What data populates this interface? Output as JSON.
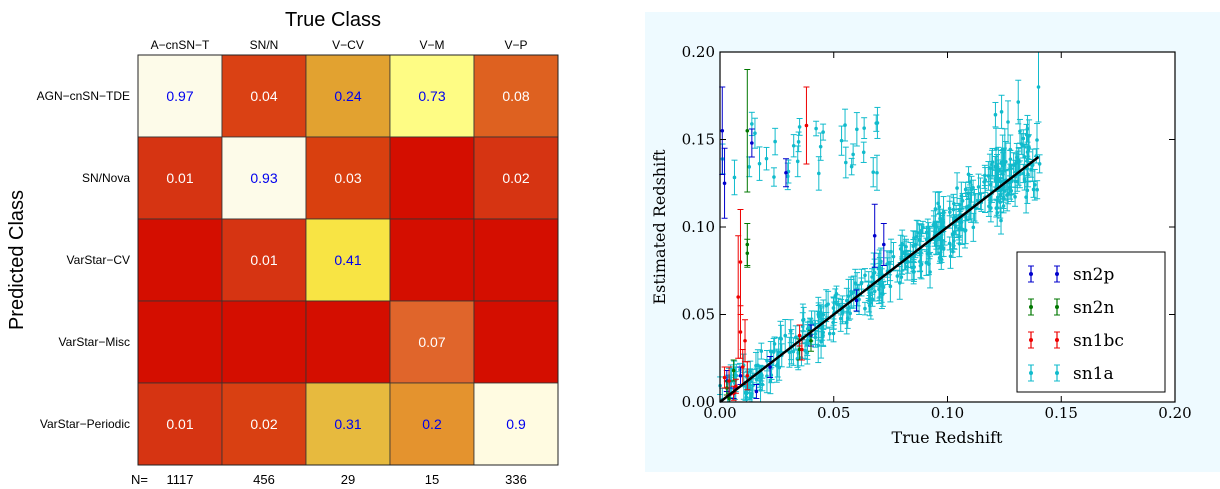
{
  "chart_data": [
    {
      "type": "heatmap",
      "title": "True Class",
      "xlabel": "True Class",
      "ylabel": "Predicted Class",
      "columns": [
        "A−cnSN−T",
        "SN/N",
        "V−CV",
        "V−M",
        "V−P"
      ],
      "rows": [
        "AGN−cnSN−TDE",
        "SN/Nova",
        "VarStar−CV",
        "VarStar−Misc",
        "VarStar−Periodic"
      ],
      "values": [
        [
          0.97,
          0.04,
          0.24,
          0.73,
          0.08
        ],
        [
          0.01,
          0.93,
          0.03,
          null,
          0.02
        ],
        [
          null,
          0.01,
          0.41,
          null,
          null
        ],
        [
          null,
          null,
          null,
          0.07,
          null
        ],
        [
          0.01,
          0.02,
          0.31,
          0.2,
          0.9
        ]
      ],
      "cell_colors": [
        [
          "#fdfbe9",
          "#da4114",
          "#e2a230",
          "#fefc84",
          "#de6120"
        ],
        [
          "#d63412",
          "#fdfbe9",
          "#d9400f",
          "#d40e00",
          "#d63412"
        ],
        [
          "#d40e00",
          "#d63412",
          "#f8e444",
          "#d40e00",
          "#d40e00"
        ],
        [
          "#d40e00",
          "#d40e00",
          "#d40e00",
          "#e0652b",
          "#d40e00"
        ],
        [
          "#d63412",
          "#d94012",
          "#e7ba3e",
          "#e4932e",
          "#fffbe1"
        ]
      ],
      "value_text_colors": {
        "high": "#0000ee",
        "low": "#ffffff"
      },
      "n_label": "N=",
      "n_values": [
        "1117",
        "456",
        "29",
        "15",
        "336"
      ]
    },
    {
      "type": "scatter",
      "xlabel": "True Redshift",
      "ylabel": "Estimated Redshift",
      "xlim": [
        0.0,
        0.2
      ],
      "ylim": [
        0.0,
        0.2
      ],
      "xticks": [
        "0.00",
        "0.05",
        "0.10",
        "0.15",
        "0.20"
      ],
      "yticks": [
        "0.00",
        "0.05",
        "0.10",
        "0.15",
        "0.20"
      ],
      "legend_position": "lower-right",
      "series": [
        {
          "name": "sn2p",
          "color": "#0000cc",
          "points": [
            [
              0.001,
              0.155,
              0.025
            ],
            [
              0.002,
              0.125,
              0.02
            ],
            [
              0.003,
              0.012,
              0.006
            ],
            [
              0.004,
              0.004,
              0.004
            ],
            [
              0.006,
              0.005,
              0.003
            ],
            [
              0.014,
              0.148,
              0.008
            ],
            [
              0.016,
              0.006,
              0.004
            ],
            [
              0.022,
              0.02,
              0.006
            ],
            [
              0.029,
              0.131,
              0.008
            ],
            [
              0.04,
              0.038,
              0.006
            ],
            [
              0.06,
              0.058,
              0.006
            ],
            [
              0.068,
              0.095,
              0.018
            ],
            [
              0.072,
              0.09,
              0.012
            ],
            [
              0.009,
              0.015,
              0.005
            ]
          ]
        },
        {
          "name": "sn2n",
          "color": "#007700",
          "points": [
            [
              0.012,
              0.155,
              0.035
            ],
            [
              0.012,
              0.09,
              0.012
            ],
            [
              0.012,
              0.085,
              0.008
            ],
            [
              0.004,
              0.002,
              0.003
            ],
            [
              0.006,
              0.018,
              0.006
            ],
            [
              0.035,
              0.03,
              0.006
            ],
            [
              0.04,
              0.035,
              0.006
            ],
            [
              0.003,
              0.008,
              0.004
            ]
          ]
        },
        {
          "name": "sn1bc",
          "color": "#ee0000",
          "points": [
            [
              0.004,
              0.012,
              0.008
            ],
            [
              0.006,
              0.005,
              0.004
            ],
            [
              0.008,
              0.06,
              0.035
            ],
            [
              0.009,
              0.08,
              0.03
            ],
            [
              0.009,
              0.04,
              0.015
            ],
            [
              0.01,
              0.02,
              0.01
            ],
            [
              0.011,
              0.035,
              0.012
            ],
            [
              0.012,
              0.015,
              0.008
            ],
            [
              0.035,
              0.038,
              0.006
            ],
            [
              0.036,
              0.03,
              0.006
            ],
            [
              0.038,
              0.158,
              0.022
            ],
            [
              0.002,
              0.014,
              0.006
            ],
            [
              0.007,
              0.009,
              0.004
            ]
          ]
        },
        {
          "name": "sn1a",
          "color": "#11bbcc",
          "density": "dense scatter along y = x for 0 ≤ x ≤ 0.14, plus an outlier cloud near y ≈ 0.13–0.16 at x ≈ 0.01–0.07"
        }
      ],
      "reference_line": {
        "from": [
          0.0,
          0.0
        ],
        "to": [
          0.14,
          0.14
        ],
        "color": "#000000"
      }
    }
  ]
}
